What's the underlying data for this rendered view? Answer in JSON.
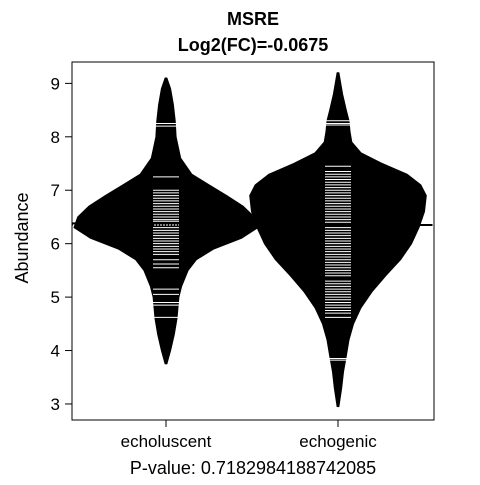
{
  "chart_data": {
    "type": "beanplot",
    "title": "MSRE",
    "subtitle": "Log2(FC)=-0.0675",
    "ylabel": "Abundance",
    "xlabel": "P-value: 0.7182984188742085",
    "ylim": [
      2.7,
      9.4
    ],
    "yticks": [
      3,
      4,
      5,
      6,
      7,
      8,
      9
    ],
    "categories": [
      "echoluscent",
      "echogenic"
    ],
    "overall_mean": 6.35,
    "beans": [
      {
        "name": "echoluscent",
        "mean": 6.38,
        "min": 3.75,
        "max": 9.1,
        "density": [
          [
            3.75,
            0.01
          ],
          [
            4.0,
            0.05
          ],
          [
            4.3,
            0.09
          ],
          [
            4.6,
            0.12
          ],
          [
            5.0,
            0.14
          ],
          [
            5.2,
            0.17
          ],
          [
            5.5,
            0.24
          ],
          [
            5.7,
            0.33
          ],
          [
            5.9,
            0.52
          ],
          [
            6.1,
            0.82
          ],
          [
            6.3,
            1.0
          ],
          [
            6.5,
            0.96
          ],
          [
            6.7,
            0.84
          ],
          [
            6.9,
            0.66
          ],
          [
            7.1,
            0.47
          ],
          [
            7.3,
            0.28
          ],
          [
            7.6,
            0.16
          ],
          [
            8.0,
            0.11
          ],
          [
            8.3,
            0.1
          ],
          [
            8.6,
            0.08
          ],
          [
            8.9,
            0.05
          ],
          [
            9.1,
            0.01
          ]
        ],
        "points": [
          4.62,
          4.85,
          4.9,
          5.05,
          5.15,
          5.55,
          5.62,
          5.7,
          5.8,
          5.85,
          5.9,
          5.95,
          6.0,
          6.05,
          6.1,
          6.15,
          6.2,
          6.25,
          6.3,
          6.35,
          6.38,
          6.42,
          6.45,
          6.5,
          6.55,
          6.6,
          6.65,
          6.7,
          6.75,
          6.8,
          6.85,
          6.9,
          6.95,
          7.0,
          7.25,
          8.2,
          8.25
        ]
      },
      {
        "name": "echogenic",
        "mean": 6.35,
        "min": 2.95,
        "max": 9.2,
        "density": [
          [
            2.95,
            0.01
          ],
          [
            3.3,
            0.04
          ],
          [
            3.6,
            0.06
          ],
          [
            3.9,
            0.09
          ],
          [
            4.2,
            0.12
          ],
          [
            4.5,
            0.17
          ],
          [
            4.8,
            0.25
          ],
          [
            5.1,
            0.37
          ],
          [
            5.4,
            0.52
          ],
          [
            5.7,
            0.68
          ],
          [
            6.0,
            0.8
          ],
          [
            6.3,
            0.88
          ],
          [
            6.6,
            0.94
          ],
          [
            6.9,
            0.96
          ],
          [
            7.1,
            0.9
          ],
          [
            7.3,
            0.75
          ],
          [
            7.5,
            0.48
          ],
          [
            7.7,
            0.25
          ],
          [
            7.9,
            0.15
          ],
          [
            8.1,
            0.13
          ],
          [
            8.3,
            0.12
          ],
          [
            8.5,
            0.09
          ],
          [
            8.8,
            0.05
          ],
          [
            9.2,
            0.01
          ]
        ],
        "points": [
          3.82,
          3.85,
          4.62,
          4.7,
          4.75,
          4.8,
          4.85,
          4.9,
          4.95,
          5.0,
          5.05,
          5.1,
          5.15,
          5.2,
          5.25,
          5.3,
          5.4,
          5.45,
          5.5,
          5.55,
          5.6,
          5.65,
          5.7,
          5.75,
          5.8,
          5.85,
          5.9,
          5.95,
          6.0,
          6.05,
          6.1,
          6.15,
          6.2,
          6.25,
          6.3,
          6.35,
          6.4,
          6.45,
          6.5,
          6.55,
          6.6,
          6.65,
          6.7,
          6.75,
          6.8,
          6.85,
          6.9,
          6.95,
          7.0,
          7.05,
          7.1,
          7.15,
          7.2,
          7.25,
          7.3,
          7.35,
          7.45,
          8.22,
          8.25,
          8.3
        ]
      }
    ],
    "colors": {
      "bean": "#000000",
      "point": "#ffffff",
      "axis": "#000000"
    }
  }
}
